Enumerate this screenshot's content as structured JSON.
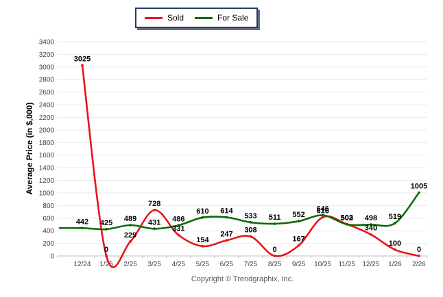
{
  "legend": {
    "items": [
      {
        "label": "Sold",
        "color": "#e8141b"
      },
      {
        "label": "For Sale",
        "color": "#0b6b0b"
      }
    ]
  },
  "chart_data": {
    "type": "line",
    "title": "",
    "ylabel": "Average Price (in $,000)",
    "xlabel": "",
    "ylim": [
      0,
      3400
    ],
    "ytick_step": 200,
    "yticks": [
      0,
      200,
      400,
      600,
      800,
      1000,
      1200,
      1400,
      1600,
      1800,
      2000,
      2200,
      2400,
      2600,
      2800,
      3000,
      3200,
      3400
    ],
    "grid": "horizontal",
    "legend_position": "top-center",
    "categories": [
      "12/24",
      "1/25",
      "2/25",
      "3/25",
      "4/25",
      "5/25",
      "6/25",
      "7/25",
      "8/25",
      "9/25",
      "10/25",
      "11/25",
      "12/25",
      "1/26",
      "2/26"
    ],
    "series": [
      {
        "name": "Sold",
        "color": "#e8141b",
        "values": [
          3025,
          0,
          229,
          728,
          331,
          154,
          247,
          308,
          0,
          167,
          616,
          503,
          340,
          100,
          0
        ]
      },
      {
        "name": "For Sale",
        "color": "#0b6b0b",
        "values": [
          442,
          425,
          489,
          431,
          486,
          610,
          614,
          533,
          511,
          552,
          646,
          502,
          498,
          519,
          1005
        ]
      }
    ]
  },
  "footer": {
    "copyright": "Copyright © Trendgraphix, Inc."
  }
}
